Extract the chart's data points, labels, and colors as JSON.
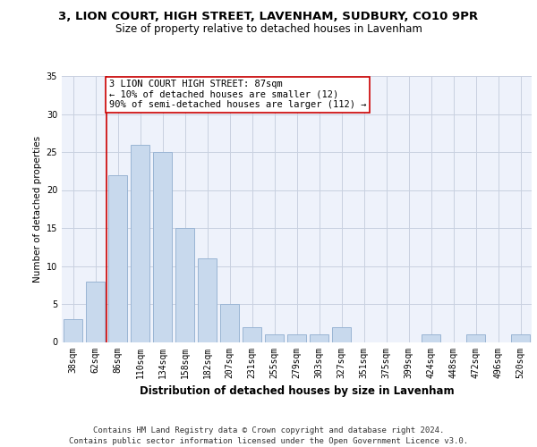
{
  "title1": "3, LION COURT, HIGH STREET, LAVENHAM, SUDBURY, CO10 9PR",
  "title2": "Size of property relative to detached houses in Lavenham",
  "xlabel": "Distribution of detached houses by size in Lavenham",
  "ylabel": "Number of detached properties",
  "categories": [
    "38sqm",
    "62sqm",
    "86sqm",
    "110sqm",
    "134sqm",
    "158sqm",
    "182sqm",
    "207sqm",
    "231sqm",
    "255sqm",
    "279sqm",
    "303sqm",
    "327sqm",
    "351sqm",
    "375sqm",
    "399sqm",
    "424sqm",
    "448sqm",
    "472sqm",
    "496sqm",
    "520sqm"
  ],
  "values": [
    3,
    8,
    22,
    26,
    25,
    15,
    11,
    5,
    2,
    1,
    1,
    1,
    2,
    0,
    0,
    0,
    1,
    0,
    1,
    0,
    1
  ],
  "bar_color": "#c8d9ed",
  "bar_edge_color": "#9ab5d4",
  "vline_color": "#cc0000",
  "annotation_text": "3 LION COURT HIGH STREET: 87sqm\n← 10% of detached houses are smaller (12)\n90% of semi-detached houses are larger (112) →",
  "annotation_box_color": "#ffffff",
  "annotation_box_edge": "#cc0000",
  "ylim": [
    0,
    35
  ],
  "yticks": [
    0,
    5,
    10,
    15,
    20,
    25,
    30,
    35
  ],
  "footer": "Contains HM Land Registry data © Crown copyright and database right 2024.\nContains public sector information licensed under the Open Government Licence v3.0.",
  "bg_color": "#eef2fb",
  "grid_color": "#c8d0e0",
  "title1_fontsize": 9.5,
  "title2_fontsize": 8.5,
  "xlabel_fontsize": 8.5,
  "ylabel_fontsize": 7.5,
  "tick_fontsize": 7,
  "footer_fontsize": 6.5,
  "annot_fontsize": 7.5
}
